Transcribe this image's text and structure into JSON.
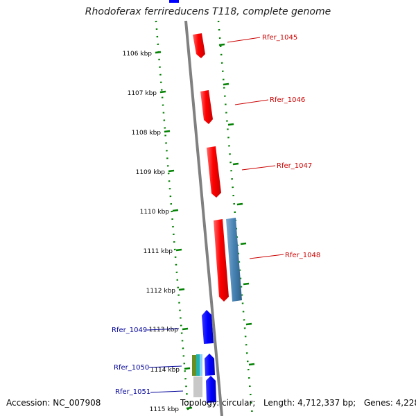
{
  "title": "Rhodoferax ferrireducens T118, complete genome",
  "footer": {
    "accession": "Accession: NC_007908",
    "topology_label": "Topology: circular;",
    "length_label": "Length: 4,712,337 bp;",
    "genes_label": "Genes: 4,228"
  },
  "ticks": [
    {
      "label": "1106 kbp"
    },
    {
      "label": "1107 kbp"
    },
    {
      "label": "1108 kbp"
    },
    {
      "label": "1109 kbp"
    },
    {
      "label": "1110 kbp"
    },
    {
      "label": "1111 kbp"
    },
    {
      "label": "1112 kbp"
    },
    {
      "label": "1113 kbp"
    },
    {
      "label": "1114 kbp"
    },
    {
      "label": "1115 kbp"
    }
  ],
  "genes_forward": [
    {
      "label": "Rfer_1045",
      "color": "#cc0000"
    },
    {
      "label": "Rfer_1046",
      "color": "#cc0000"
    },
    {
      "label": "Rfer_1047",
      "color": "#cc0000"
    },
    {
      "label": "Rfer_1048",
      "color": "#cc0000"
    }
  ],
  "genes_reverse": [
    {
      "label": "Rfer_1049",
      "color": "#000099"
    },
    {
      "label": "Rfer_1050",
      "color": "#000099"
    },
    {
      "label": "Rfer_1051",
      "color": "#000099"
    }
  ],
  "colors": {
    "forward_gene": "#ff0000",
    "reverse_gene": "#0000ff",
    "other_feature": "#4682b4",
    "backbone": "#808080",
    "tick_marks": "#008000"
  }
}
